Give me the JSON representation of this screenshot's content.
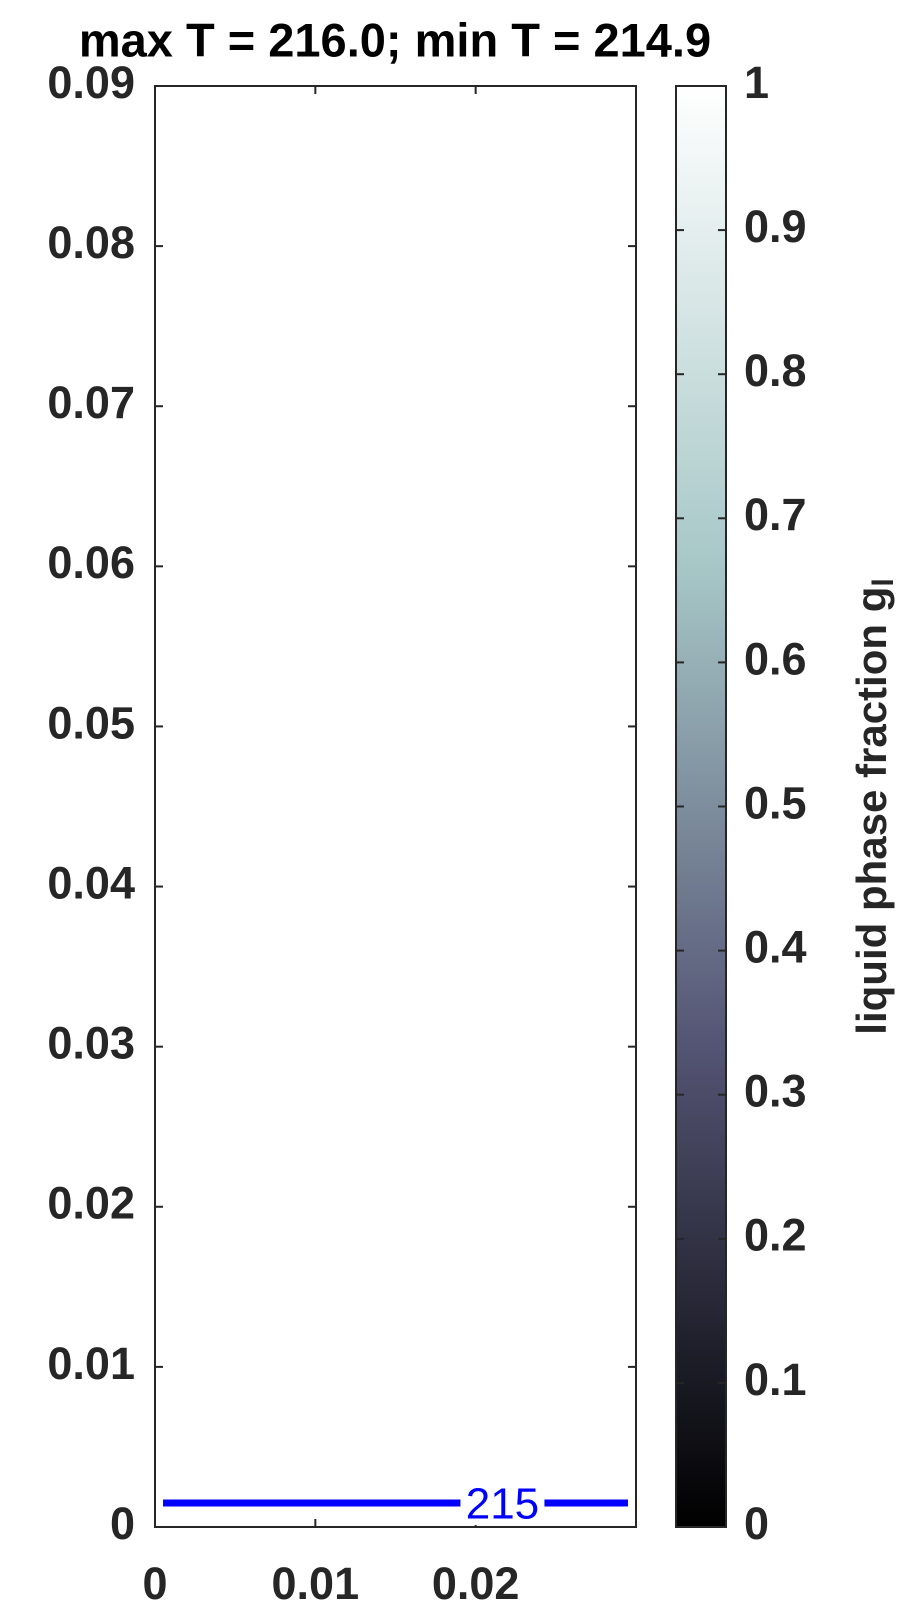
{
  "chart_data": {
    "type": "contour",
    "title": "max T = 216.0; min T = 214.9",
    "xlim": [
      0,
      0.03
    ],
    "xticks": [
      0,
      0.01,
      0.02
    ],
    "ylim": [
      0,
      0.09
    ],
    "yticks": [
      0,
      0.01,
      0.02,
      0.03,
      0.04,
      0.05,
      0.06,
      0.07,
      0.08,
      0.09
    ],
    "contours": [
      {
        "level": 215,
        "color": "#0000ff",
        "x": [
          0.0005,
          0.0295
        ],
        "y": [
          0.0015,
          0.0015
        ]
      }
    ],
    "colorbar": {
      "label": "liquid phase fraction g",
      "label_subscript": "l",
      "lim": [
        0,
        1
      ],
      "ticks": [
        0,
        0.1,
        0.2,
        0.3,
        0.4,
        0.5,
        0.6,
        0.7,
        0.8,
        0.9,
        1
      ],
      "colormap": [
        "#000000",
        "#545474",
        "#a7c7c7",
        "#ffffff"
      ]
    }
  }
}
